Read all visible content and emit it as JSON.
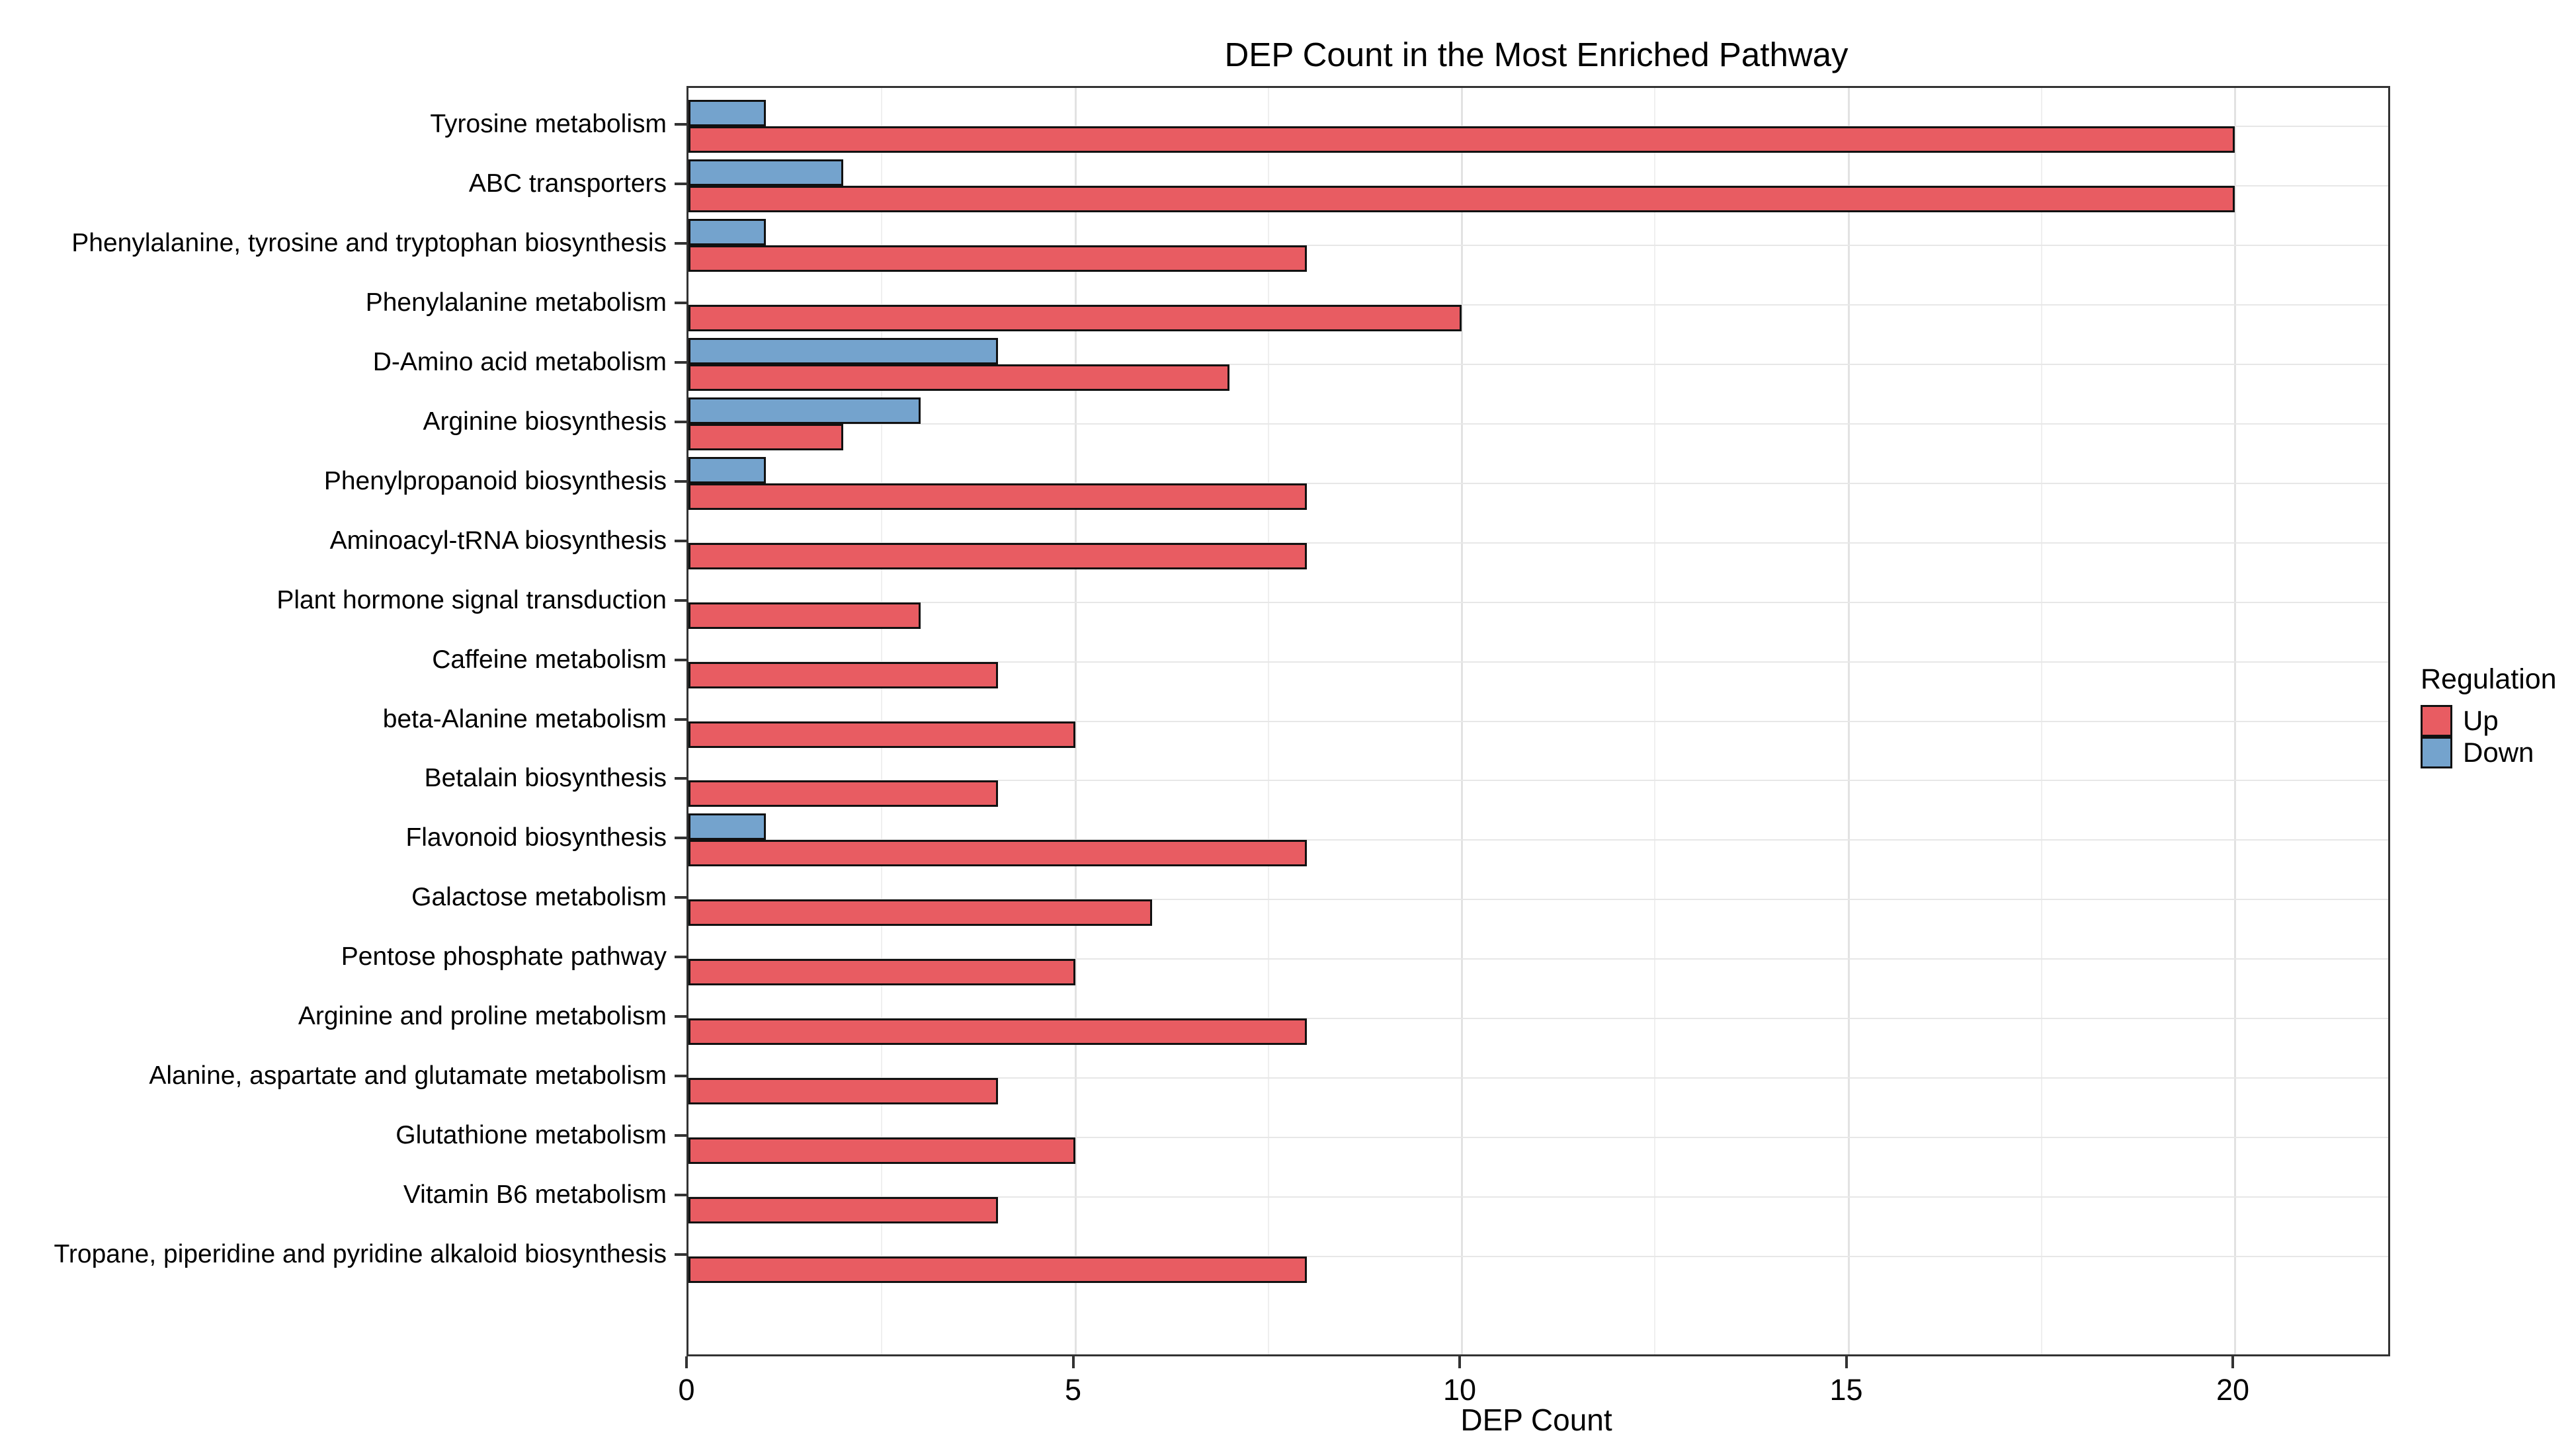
{
  "chart_data": {
    "type": "bar",
    "orientation": "horizontal",
    "title": "DEP Count in the Most Enriched Pathway",
    "xlabel": "DEP Count",
    "ylabel": "",
    "categories": [
      "Tyrosine metabolism",
      "ABC transporters",
      "Phenylalanine, tyrosine and tryptophan biosynthesis",
      "Phenylalanine metabolism",
      "D-Amino acid metabolism",
      "Arginine biosynthesis",
      "Phenylpropanoid biosynthesis",
      "Aminoacyl-tRNA biosynthesis",
      "Plant hormone signal transduction",
      "Caffeine metabolism",
      "beta-Alanine metabolism",
      "Betalain biosynthesis",
      "Flavonoid biosynthesis",
      "Galactose metabolism",
      "Pentose phosphate pathway",
      "Arginine and proline metabolism",
      "Alanine, aspartate and glutamate metabolism",
      "Glutathione metabolism",
      "Vitamin B6 metabolism",
      "Tropane, piperidine and pyridine alkaloid biosynthesis"
    ],
    "series": [
      {
        "name": "Up",
        "color": "#E85C62",
        "values": [
          20,
          20,
          8,
          10,
          7,
          2,
          8,
          8,
          3,
          4,
          5,
          4,
          8,
          6,
          5,
          8,
          4,
          5,
          4,
          8
        ]
      },
      {
        "name": "Down",
        "color": "#74A3CD",
        "values": [
          1,
          2,
          1,
          0,
          4,
          3,
          1,
          0,
          0,
          0,
          0,
          0,
          1,
          0,
          0,
          0,
          0,
          0,
          0,
          0
        ]
      }
    ],
    "xlim": [
      0,
      22
    ],
    "x_major_ticks": [
      0,
      5,
      10,
      15,
      20
    ],
    "x_major_tick_labels": [
      "0",
      "5",
      "10",
      "15",
      "20"
    ],
    "x_minor_gridlines": [
      2.5,
      7.5,
      12.5,
      17.5
    ],
    "grid": "major and minor vertical, major horizontal per category",
    "legend": {
      "title": "Regulation",
      "position": "right",
      "items": [
        {
          "label": "Up",
          "color": "#E85C62"
        },
        {
          "label": "Down",
          "color": "#74A3CD"
        }
      ]
    },
    "colors": {
      "bar_border": "#111111",
      "panel_border": "#333333",
      "major_grid": "#e2e2e2",
      "minor_grid": "#efefef",
      "background": "#FFFFFF"
    }
  }
}
